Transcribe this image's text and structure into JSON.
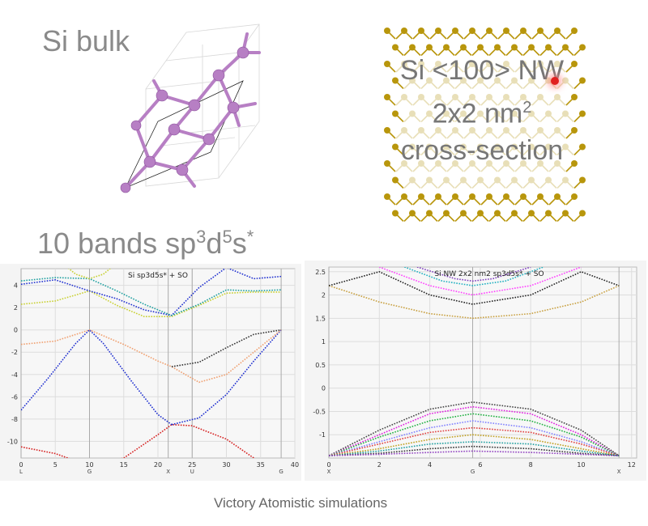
{
  "bulk_label": "Si bulk",
  "nw_label_lines": [
    "Si <100> NW",
    "2x2 nm",
    "cross-section"
  ],
  "nw_superscript": "2",
  "bands_label": "10 bands sp",
  "bands_sup1": "3",
  "bands_d": "d",
  "bands_sup2": "5",
  "bands_s": "s",
  "bands_sup3": "*",
  "caption": "Victory Atomistic simulations",
  "colors": {
    "atom_purple": "#b77fc4",
    "atom_gold": "#b8960c",
    "pointer_red": "#e02020"
  },
  "chart_data": [
    {
      "type": "line",
      "title": "Si sp3d5s* + SO",
      "x_ticks": [
        "0",
        "5",
        "10",
        "15",
        "20",
        "25",
        "30",
        "35",
        "40"
      ],
      "y_ticks": [
        "4",
        "2",
        "0",
        "-2",
        "-4",
        "-6",
        "-8",
        "-10"
      ],
      "high_symmetry_labels": [
        "L",
        "G",
        "X",
        "U",
        "G"
      ],
      "xlim": [
        0,
        40
      ],
      "ylim": [
        -11.5,
        5.5
      ],
      "series": [
        {
          "color": "#d62020",
          "x": [
            0,
            5,
            10,
            15,
            20,
            22,
            25,
            30,
            34
          ],
          "y": [
            -10.5,
            -11.1,
            -12.2,
            -11.5,
            -9.4,
            -8.5,
            -8.6,
            -9.8,
            -11.5
          ]
        },
        {
          "color": "#2030d0",
          "x": [
            0,
            4,
            8,
            10,
            12,
            16,
            20,
            22
          ],
          "y": [
            -7.2,
            -4.3,
            -1.2,
            0,
            -1.2,
            -4.5,
            -7.6,
            -8.5
          ]
        },
        {
          "color": "#2030d0",
          "x": [
            22,
            26,
            30,
            34,
            38
          ],
          "y": [
            -8.5,
            -7.9,
            -5.8,
            -2.8,
            0
          ]
        },
        {
          "color": "#f0a070",
          "x": [
            0,
            5,
            10,
            15,
            20,
            22,
            24,
            26,
            30,
            34,
            38
          ],
          "y": [
            -1.3,
            -1.0,
            0,
            -1.3,
            -2.8,
            -3.3,
            -4.0,
            -4.7,
            -4.0,
            -2.0,
            0
          ]
        },
        {
          "color": "#333333",
          "x": [
            22,
            26,
            30,
            34,
            38
          ],
          "y": [
            -3.3,
            -2.9,
            -1.6,
            -0.4,
            0
          ]
        },
        {
          "color": "#c8d030",
          "x": [
            0,
            5,
            10,
            14,
            18,
            22,
            26,
            30,
            34,
            38
          ],
          "y": [
            2.3,
            2.6,
            3.5,
            2.2,
            1.2,
            1.2,
            2.2,
            3.3,
            3.4,
            3.4
          ]
        },
        {
          "color": "#2030d0",
          "x": [
            0,
            5,
            10,
            14,
            18,
            22,
            26,
            30,
            34,
            38
          ],
          "y": [
            4.1,
            4.5,
            3.5,
            2.8,
            1.8,
            1.3,
            3.8,
            5.6,
            4.6,
            4.8
          ]
        },
        {
          "color": "#20a0a0",
          "x": [
            0,
            5,
            10,
            14,
            18,
            22,
            26,
            30,
            34,
            38
          ],
          "y": [
            4.4,
            4.7,
            4.6,
            3.5,
            2.3,
            1.3,
            2.3,
            3.6,
            3.5,
            3.6
          ]
        },
        {
          "color": "#c8d030",
          "x": [
            6,
            8,
            10,
            12,
            14
          ],
          "y": [
            6.0,
            5.0,
            4.6,
            5.0,
            6.0
          ]
        }
      ]
    },
    {
      "type": "line",
      "title": "Si NW 2x2 nm2 sp3d5s* + SO",
      "x_ticks": [
        "0",
        "2",
        "4",
        "6",
        "8",
        "10",
        "12"
      ],
      "y_ticks": [
        "2.5",
        "2",
        "1.5",
        "1",
        "0.5",
        "0",
        "-0.5",
        "-1"
      ],
      "high_symmetry_labels": [
        "X",
        "G",
        "X"
      ],
      "xlim": [
        0,
        12.2
      ],
      "ylim": [
        -1.5,
        2.6
      ],
      "series": [
        {
          "color": "#c8a040",
          "x": [
            0,
            2,
            4,
            5.7,
            8,
            10,
            11.5
          ],
          "y": [
            2.2,
            1.85,
            1.6,
            1.5,
            1.6,
            1.85,
            2.2
          ]
        },
        {
          "color": "#222222",
          "x": [
            0,
            2,
            4,
            5.7,
            8,
            10,
            11.5
          ],
          "y": [
            2.2,
            2.5,
            2.0,
            1.8,
            2.0,
            2.5,
            2.2
          ]
        },
        {
          "color": "#ff40ff",
          "x": [
            2,
            4,
            5.7,
            8,
            10
          ],
          "y": [
            2.6,
            2.2,
            2.0,
            2.2,
            2.6
          ]
        },
        {
          "color": "#20b0c0",
          "x": [
            3,
            4.5,
            5.7,
            7,
            8.5
          ],
          "y": [
            2.6,
            2.3,
            2.2,
            2.3,
            2.6
          ]
        },
        {
          "color": "#8040c0",
          "x": [
            3.5,
            5,
            5.7,
            6.5,
            8
          ],
          "y": [
            2.6,
            2.35,
            2.3,
            2.35,
            2.6
          ]
        },
        {
          "color": "#444444",
          "x": [
            0,
            2,
            4,
            5.7,
            8,
            10,
            11.5
          ],
          "y": [
            -1.45,
            -0.9,
            -0.45,
            -0.3,
            -0.45,
            -0.9,
            -1.45
          ]
        },
        {
          "color": "#e020e0",
          "x": [
            0,
            2,
            4,
            5.7,
            8,
            10,
            11.5
          ],
          "y": [
            -1.45,
            -1.0,
            -0.55,
            -0.4,
            -0.55,
            -1.0,
            -1.45
          ]
        },
        {
          "color": "#20b040",
          "x": [
            0,
            2,
            4,
            5.7,
            8,
            10,
            11.5
          ],
          "y": [
            -1.45,
            -1.05,
            -0.7,
            -0.55,
            -0.7,
            -1.05,
            -1.45
          ]
        },
        {
          "color": "#8080ff",
          "x": [
            0,
            2,
            4,
            5.7,
            8,
            10,
            11.5
          ],
          "y": [
            -1.45,
            -1.15,
            -0.85,
            -0.7,
            -0.85,
            -1.15,
            -1.45
          ]
        },
        {
          "color": "#e04040",
          "x": [
            0,
            2,
            4,
            5.7,
            8,
            10,
            11.5
          ],
          "y": [
            -1.45,
            -1.2,
            -0.95,
            -0.85,
            -0.95,
            -1.2,
            -1.45
          ]
        },
        {
          "color": "#c0a020",
          "x": [
            0,
            2,
            4,
            5.7,
            8,
            10,
            11.5
          ],
          "y": [
            -1.45,
            -1.3,
            -1.1,
            -1.0,
            -1.1,
            -1.3,
            -1.45
          ]
        },
        {
          "color": "#20a0a0",
          "x": [
            0,
            2,
            4,
            5.7,
            8,
            10,
            11.5
          ],
          "y": [
            -1.45,
            -1.35,
            -1.2,
            -1.15,
            -1.2,
            -1.35,
            -1.45
          ]
        },
        {
          "color": "#333333",
          "x": [
            0,
            2,
            4,
            5.7,
            8,
            10,
            11.5
          ],
          "y": [
            -1.45,
            -1.4,
            -1.3,
            -1.25,
            -1.3,
            -1.4,
            -1.45
          ]
        },
        {
          "color": "#9040c0",
          "x": [
            0,
            2,
            4,
            5.7,
            8,
            10,
            11.5
          ],
          "y": [
            -1.45,
            -1.42,
            -1.38,
            -1.35,
            -1.38,
            -1.42,
            -1.45
          ]
        }
      ]
    }
  ]
}
